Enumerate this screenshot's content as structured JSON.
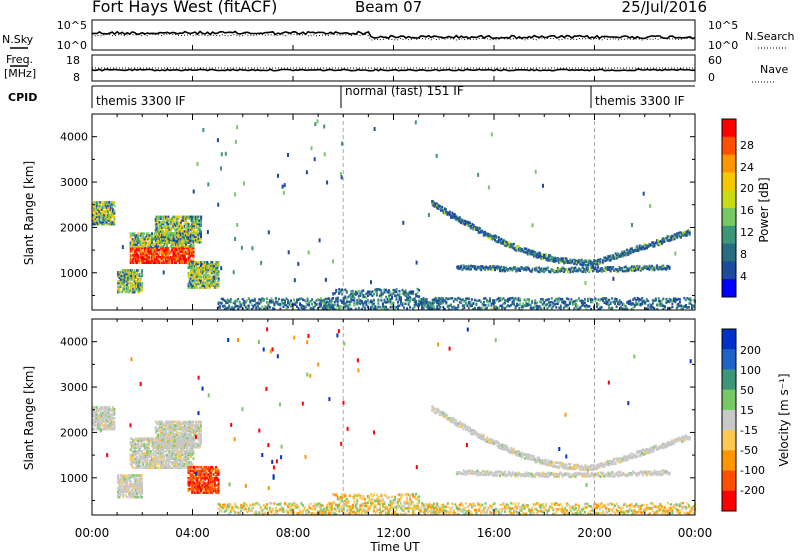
{
  "chart_data": {
    "type": "heatmap",
    "header": {
      "station": "Fort Hays West (fitACF)",
      "beam": "Beam 07",
      "date": "25/Jul/2016"
    },
    "strips": {
      "nsky": {
        "left_label": "N.Sky",
        "left_ticks": [
          "10^5",
          "10^0"
        ],
        "right_label": "N.Search",
        "right_ticks": [
          "10^5",
          "10^0"
        ]
      },
      "freq": {
        "left_label_lines": [
          "Freq.",
          "[MHz]"
        ],
        "left_ticks": [
          "18",
          "8"
        ],
        "right_label": "Nave",
        "right_ticks": [
          "60",
          "0"
        ]
      },
      "cpid": {
        "label": "CPID",
        "segments": [
          {
            "text": "themis 3300 IF",
            "start": 0,
            "end": 10
          },
          {
            "text": "normal (fast) 151 IF",
            "start": 10,
            "end": 20
          },
          {
            "text": "themis 3300 IF",
            "start": 20,
            "end": 24
          }
        ]
      }
    },
    "xaxis": {
      "label": "Time UT",
      "range_hours": [
        0,
        24
      ],
      "tick_hours": [
        0,
        4,
        8,
        12,
        16,
        20,
        24
      ],
      "tick_labels": [
        "00:00",
        "04:00",
        "08:00",
        "12:00",
        "16:00",
        "20:00",
        "00:00"
      ],
      "mode_changes_hours": [
        10,
        20
      ]
    },
    "yaxis": {
      "label": "Slant Range [km]",
      "range_km": [
        180,
        4500
      ],
      "ticks": [
        1000,
        2000,
        3000,
        4000
      ]
    },
    "panels": [
      {
        "id": "power",
        "colorbar": {
          "label": "Power [dB]",
          "ticks": [
            "28",
            "24",
            "20",
            "16",
            "12",
            "8",
            "4"
          ],
          "colors": [
            "#ff0000",
            "#ff5000",
            "#ff9600",
            "#f5c800",
            "#c8dc14",
            "#78c864",
            "#3c9678",
            "#286e82",
            "#1e4ba0",
            "#0000ff"
          ]
        },
        "features": [
          {
            "name": "Enhanced echo arc",
            "t_start": 1.0,
            "t_end": 4.0,
            "range_km": [
              1300,
              1900
            ],
            "value": "20–28 dB"
          },
          {
            "name": "Afternoon arc (upper)",
            "t_start": 13.5,
            "t_end": 23.5,
            "range_km": [
              1400,
              2600
            ],
            "value": "4–16 dB"
          },
          {
            "name": "Afternoon arc (lower)",
            "t_start": 14.5,
            "t_end": 23.0,
            "range_km": [
              1000,
              1200
            ],
            "value": "4–16 dB"
          },
          {
            "name": "Near-range echoes",
            "t_start": 5.0,
            "t_end": 24.0,
            "range_km": [
              200,
              450
            ],
            "value": "4–12 dB"
          }
        ]
      },
      {
        "id": "velocity",
        "colorbar": {
          "label": "Velocity [m s⁻¹]",
          "ticks": [
            "200",
            "100",
            "50",
            "15",
            "-15",
            "-50",
            "-100",
            "-200"
          ],
          "colors": [
            "#0032c8",
            "#1e64c8",
            "#3c9678",
            "#78c864",
            "#c8c8c8",
            "#ffc850",
            "#ff9600",
            "#ff5000",
            "#ff0000"
          ]
        },
        "features": [
          {
            "name": "Ground scatter (grey)",
            "t_start": 13.5,
            "t_end": 23.5,
            "range_km": [
              900,
              2600
            ],
            "value": "-15–15 m/s"
          },
          {
            "name": "Receding flow",
            "t_start": 3.5,
            "t_end": 5.0,
            "range_km": [
              700,
              1400
            ],
            "value": "-100 to -200 m/s"
          },
          {
            "name": "Near-range flow",
            "t_start": 5.0,
            "t_end": 24.0,
            "range_km": [
              200,
              450
            ],
            "value": "-50 to 50 m/s"
          }
        ]
      }
    ]
  }
}
